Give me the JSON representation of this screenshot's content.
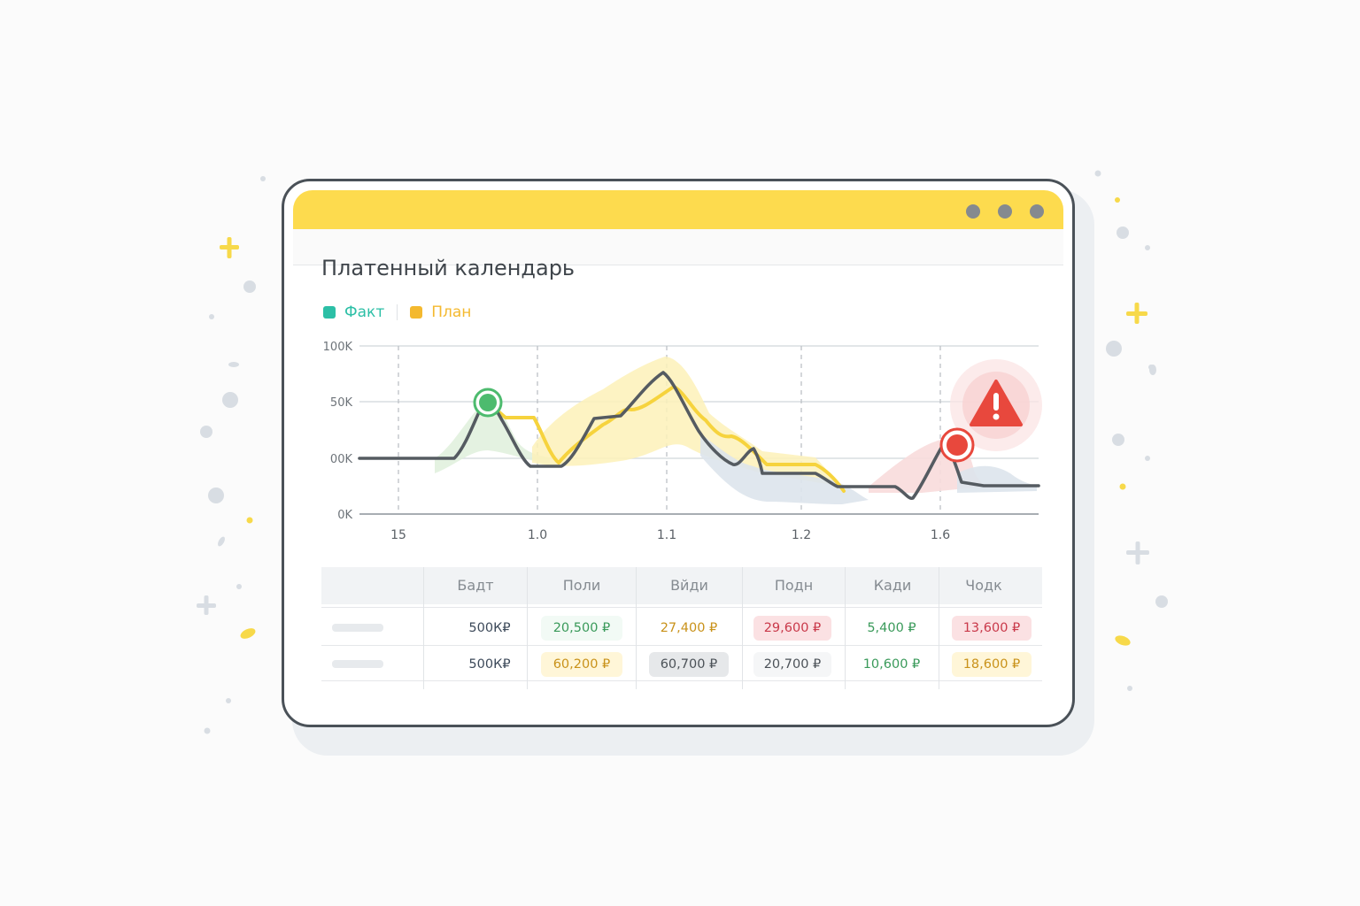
{
  "window": {
    "title": "Платенный календарь"
  },
  "legend": [
    {
      "label": "Факт",
      "color": "#2cbfa6"
    },
    {
      "label": "План",
      "color": "#f4b92f"
    }
  ],
  "chart_data": {
    "type": "line",
    "y_ticks": [
      "100K",
      "50K",
      "00K",
      "0K"
    ],
    "x_ticks": [
      "15",
      "1.0",
      "1.1",
      "1.2",
      "1.6"
    ],
    "series": [
      {
        "name": "Факт",
        "color": "#555b61"
      },
      {
        "name": "План",
        "color": "#f6d33d"
      }
    ],
    "markers": [
      {
        "type": "ok",
        "color": "#4dbb6e"
      },
      {
        "type": "alert",
        "color": "#e8483d",
        "icon": "warning-triangle-icon"
      }
    ],
    "grid": true
  },
  "table": {
    "headers": [
      "",
      "Бадт",
      "Поли",
      "Вйди",
      "Подн",
      "Кади",
      "Чодк"
    ],
    "rows": [
      {
        "cells": [
          {
            "text": "500К₽",
            "color": "#3d4a5a",
            "bg": ""
          },
          {
            "text": "20,500 ₽",
            "color": "#3a9a5a",
            "bg": "#f2faf5"
          },
          {
            "text": "27,400 ₽",
            "color": "#c9921a",
            "bg": ""
          },
          {
            "text": "29,600 ₽",
            "color": "#c9394a",
            "bg": "#fbe1e3"
          },
          {
            "text": "5,400 ₽",
            "color": "#3a9a5a",
            "bg": ""
          },
          {
            "text": "13,600 ₽",
            "color": "#c9394a",
            "bg": "#fbe1e3"
          }
        ]
      },
      {
        "cells": [
          {
            "text": "500К₽",
            "color": "#3d4a5a",
            "bg": ""
          },
          {
            "text": "60,200 ₽",
            "color": "#c9921a",
            "bg": "#fff6d8"
          },
          {
            "text": "60,700 ₽",
            "color": "#4c5258",
            "bg": "#e6e8ea"
          },
          {
            "text": "20,700 ₽",
            "color": "#4c5258",
            "bg": "#f5f6f7"
          },
          {
            "text": "10,600 ₽",
            "color": "#3a9a5a",
            "bg": ""
          },
          {
            "text": "18,600 ₽",
            "color": "#c9921a",
            "bg": "#fff6d8"
          }
        ]
      }
    ]
  }
}
